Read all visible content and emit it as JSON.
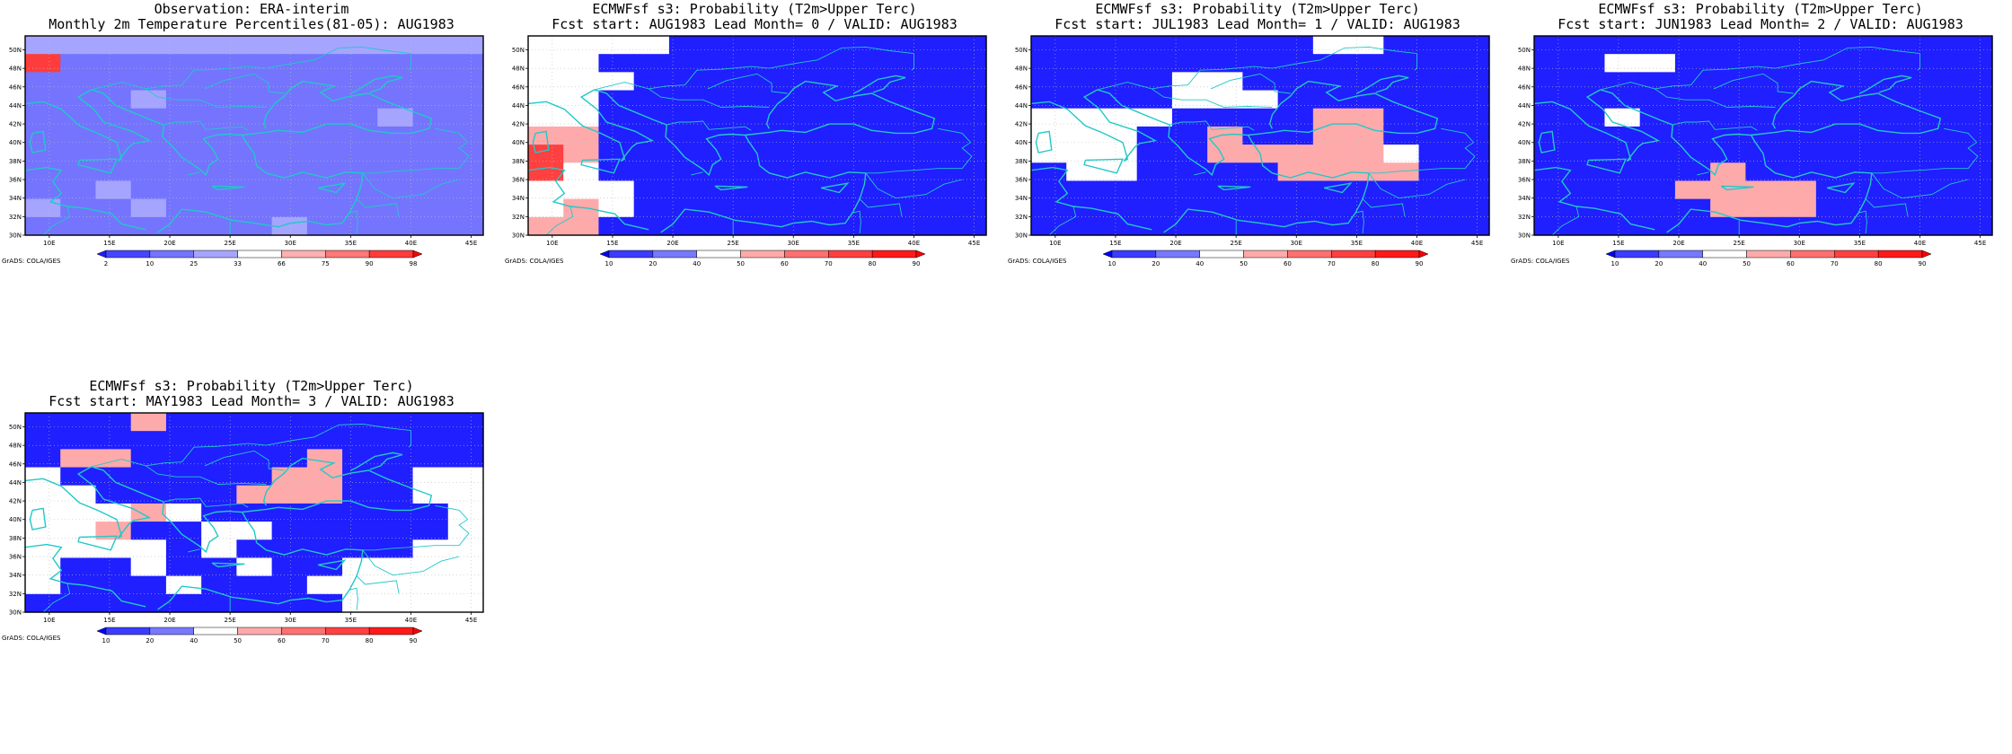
{
  "map": {
    "lon_range": [
      8,
      46
    ],
    "lat_range": [
      30,
      51.5
    ],
    "x_tick_labels": [
      "10E",
      "15E",
      "20E",
      "25E",
      "30E",
      "35E",
      "40E",
      "45E"
    ],
    "y_tick_labels": [
      "30N",
      "32N",
      "34N",
      "36N",
      "38N",
      "40N",
      "42N",
      "44N",
      "46N",
      "48N",
      "50N"
    ],
    "coastline_color": "#22c8c8",
    "credit": "GrADS: COLA/IGES"
  },
  "panels": [
    {
      "id": "obs",
      "title_line1": "Observation: ERA-interim",
      "title_line2": "Monthly 2m Temperature Percentiles(81-05): AUG1983",
      "colorbar_labels": [
        "2",
        "10",
        "25",
        "33",
        "66",
        "75",
        "90",
        "98"
      ],
      "colorbar_colors": [
        "#1d1dff",
        "#4545ff",
        "#7474ff",
        "#a5a5ff",
        "#ffffff",
        "#ffb0b0",
        "#ff7777",
        "#ff3c3c",
        "#ff0000"
      ],
      "grid": [
        "DDDDDDDDDDDDD",
        "ECCCCCCCCCCCC",
        "CCCCCCCCCCCCC",
        "CCCDCCCCCCCCC",
        "CCCCCCCCCCDCC",
        "CCCCCCCCCCCCC",
        "CCCCCCCCCCCCC",
        "CCCCCCCCCCCCC",
        "CCDCCCCCCCCCC",
        "DCCDCCCCCCCCC",
        "CCCCCCCDCCCCC"
      ]
    },
    {
      "id": "lead0",
      "title_line1": "ECMWFsf s3: Probability (T2m>Upper Terc)",
      "title_line2": "Fcst start: AUG1983  Lead Month= 0 / VALID: AUG1983",
      "colorbar_labels": [
        "10",
        "20",
        "40",
        "50",
        "60",
        "70",
        "80",
        "90"
      ],
      "colorbar_colors": [
        "#0000ff",
        "#3c3cff",
        "#7878ff",
        "#ffffff",
        "#ffaaaa",
        "#ff7070",
        "#ff4040",
        "#ff1a1a",
        "#ff0000"
      ],
      "grid": [
        "OOOOAAAAAAAAA",
        "OOAAAAAAAAAAA",
        "OOOAAAAAAAAAA",
        "OOAAAAAAAAAAA",
        "OOAAAAAAAAAAA",
        "XXAAAAAAAAAAA",
        "RXAAAAAAAAAAA",
        "ROAAAAAAAAAAA",
        "OOOAAAAAAAAAA",
        "OXOAAAAAAAAAA",
        "XXAAAAAAAAAAA"
      ]
    },
    {
      "id": "lead1",
      "title_line1": "ECMWFsf s3: Probability (T2m>Upper Terc)",
      "title_line2": "Fcst start: JUL1983  Lead Month= 1 / VALID: AUG1983",
      "colorbar_labels": [
        "10",
        "20",
        "40",
        "50",
        "60",
        "70",
        "80",
        "90"
      ],
      "colorbar_colors": [
        "#0000ff",
        "#3c3cff",
        "#7878ff",
        "#ffffff",
        "#ffaaaa",
        "#ff7070",
        "#ff4040",
        "#ff1a1a",
        "#ff0000"
      ],
      "grid": [
        "AAAAAAAAOOAAA",
        "AAAAAAAAAAAAA",
        "AAAAOOAAAAAAA",
        "AAAAOOOAAAAAA",
        "OOOOAAAAXXAAA",
        "OOOAAXAAXXAAA",
        "OOOAAXXXXXOAA",
        "AOOAAAAXXXXAA",
        "AAAAAAAAAAAAA",
        "AAAAAAAAAAAAA",
        "AAAAAAAAAAAAA"
      ]
    },
    {
      "id": "lead2",
      "title_line1": "ECMWFsf s3: Probability (T2m>Upper Terc)",
      "title_line2": "Fcst start: JUN1983  Lead Month= 2 / VALID: AUG1983",
      "colorbar_labels": [
        "10",
        "20",
        "40",
        "50",
        "60",
        "70",
        "80",
        "90"
      ],
      "colorbar_colors": [
        "#0000ff",
        "#3c3cff",
        "#7878ff",
        "#ffffff",
        "#ffaaaa",
        "#ff7070",
        "#ff4040",
        "#ff1a1a",
        "#ff0000"
      ],
      "grid": [
        "AAAAAAAAAAAAA",
        "AAOOAAAAAAAAA",
        "AAAAAAAAAAAAA",
        "AAAAAAAAAAAAA",
        "AAOAAAAAAAAAA",
        "AAAAAAAAAAAAA",
        "AAAAAAAAAAAAA",
        "AAAAAXAAAAAAA",
        "AAAAXXXXAAAAA",
        "AAAAAXXXAAAAA",
        "AAAAAAAAAAAAA"
      ]
    },
    {
      "id": "lead3",
      "title_line1": "ECMWFsf s3: Probability (T2m>Upper Terc)",
      "title_line2": "Fcst start: MAY1983  Lead Month= 3 / VALID: AUG1983",
      "colorbar_labels": [
        "10",
        "20",
        "40",
        "50",
        "60",
        "70",
        "80",
        "90"
      ],
      "colorbar_colors": [
        "#0000ff",
        "#3c3cff",
        "#7878ff",
        "#ffffff",
        "#ffaaaa",
        "#ff7070",
        "#ff4040",
        "#ff1a1a",
        "#ff0000"
      ],
      "grid": [
        "AAAXAAAAAAAAA",
        "AAAAAAAAAAAAA",
        "AXXAAAAAXAAAA",
        "OAAAAAAXXAAOO",
        "OOAAAAXXXAAOO",
        "OOOXOAAAAAAAO",
        "OOXAAOOAAAAAO",
        "OOOOAOAAAAAOO",
        "OAAOAAOAAOOOO",
        "OAAAOAAAOOOOO",
        "AAAAAAAAAOOOO"
      ]
    }
  ]
}
